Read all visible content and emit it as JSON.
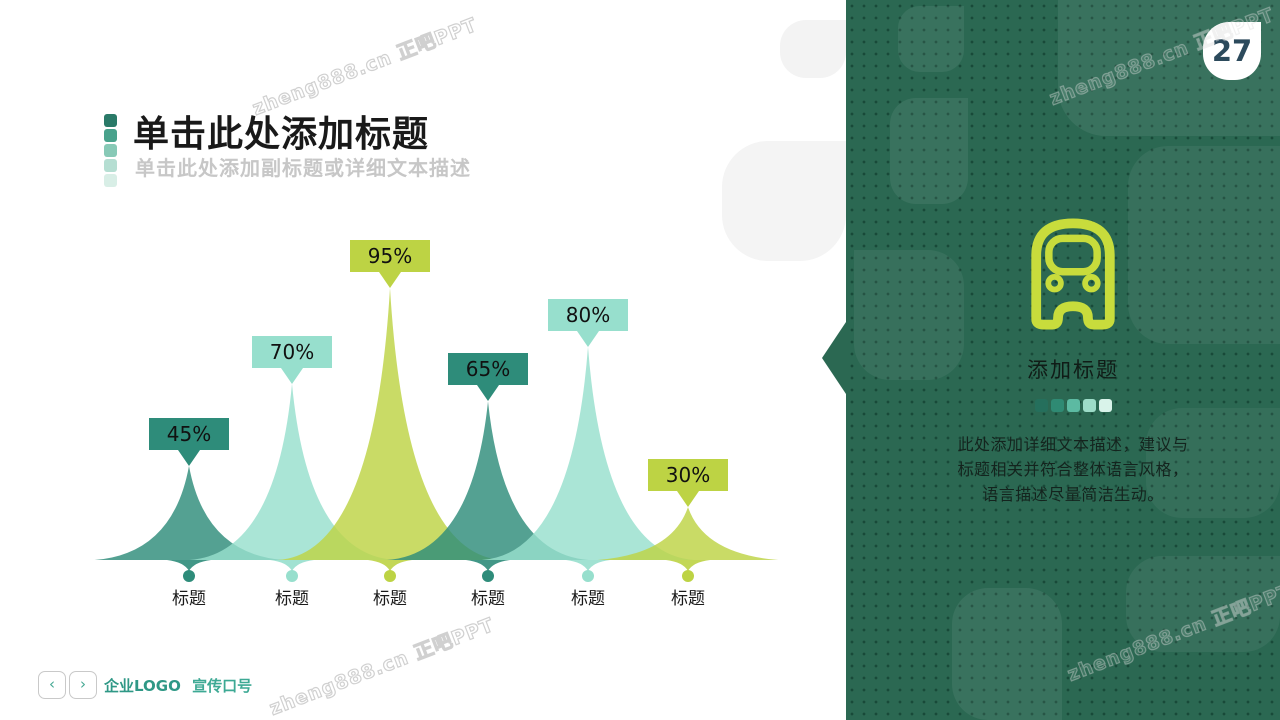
{
  "slide": {
    "page_number": "27"
  },
  "header": {
    "title": "单击此处添加标题",
    "subtitle": "单击此处添加副标题或详细文本描述"
  },
  "chart_data": {
    "type": "area",
    "description": "six stylized concave peak shapes with percentage callout badges",
    "categories": [
      "标题",
      "标题",
      "标题",
      "标题",
      "标题",
      "标题"
    ],
    "values": [
      45,
      70,
      95,
      65,
      80,
      30
    ],
    "labels": [
      "45%",
      "70%",
      "95%",
      "65%",
      "80%",
      "30%"
    ],
    "colors": [
      "#2e8c7a",
      "#97dfcd",
      "#bdd344",
      "#2e8c7a",
      "#97dfcd",
      "#bdd344"
    ],
    "ylim": [
      0,
      100
    ],
    "legend": "none",
    "grid": false
  },
  "panel": {
    "icon": "bus-icon",
    "title": "添加标题",
    "body_lines": [
      "此处添加详细文本描述，建议与",
      "标题相关并符合整体语言风格，",
      "语言描述尽量简洁生动。"
    ]
  },
  "footer": {
    "prev_label": "‹",
    "next_label": "›",
    "logo": "企业LOGO",
    "slogan": "宣传口号"
  },
  "watermark": {
    "text": "zheng888.cn 正吧PPT"
  },
  "colors": {
    "panel_green": "#2b6852",
    "lime_accent": "#c8dc3c",
    "page_number_text": "#2c4a5c",
    "accent_squares": [
      "#2a7a68",
      "#49a28c",
      "#87c9b6",
      "#b5ded2",
      "#d8eee6"
    ],
    "panel_squares": [
      "#256f5c",
      "#2f8a73",
      "#5cbaa2",
      "#9ddcc8",
      "#d9f3ea"
    ]
  }
}
